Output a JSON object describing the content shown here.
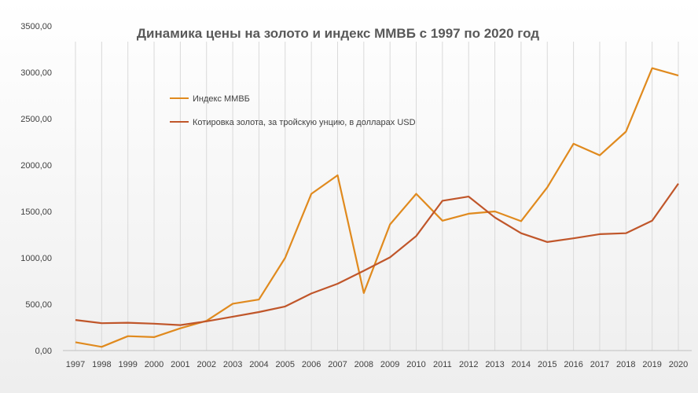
{
  "chart_data": {
    "type": "line",
    "title": "Динамика цены на золото и индекс ММВБ с 1997 по 2020 год",
    "xlabel": "",
    "ylabel": "",
    "ylim": [
      0,
      3500
    ],
    "y_ticks": [
      "0,00",
      "500,00",
      "1000,00",
      "1500,00",
      "2000,00",
      "2500,00",
      "3000,00",
      "3500,00"
    ],
    "categories": [
      "1997",
      "1998",
      "1999",
      "2000",
      "2001",
      "2002",
      "2003",
      "2004",
      "2005",
      "2006",
      "2007",
      "2008",
      "2009",
      "2010",
      "2011",
      "2012",
      "2013",
      "2014",
      "2015",
      "2016",
      "2017",
      "2018",
      "2019",
      "2020"
    ],
    "series": [
      {
        "name": "Индекс ММВБ",
        "color": "#E08A1E",
        "values": [
          90,
          40,
          155,
          145,
          240,
          320,
          505,
          550,
          1000,
          1690,
          1890,
          620,
          1360,
          1690,
          1400,
          1475,
          1500,
          1395,
          1760,
          2230,
          2105,
          2360,
          3045,
          2965
        ]
      },
      {
        "name": "Котировка золота, за тройскую унцию, в долларах USD",
        "color": "#C0562A",
        "values": [
          330,
          295,
          300,
          290,
          275,
          315,
          365,
          415,
          475,
          615,
          720,
          860,
          1005,
          1235,
          1615,
          1660,
          1435,
          1265,
          1170,
          1210,
          1255,
          1265,
          1400,
          1800
        ]
      }
    ],
    "legend": "upper-left-inside",
    "grid": "vertical"
  }
}
